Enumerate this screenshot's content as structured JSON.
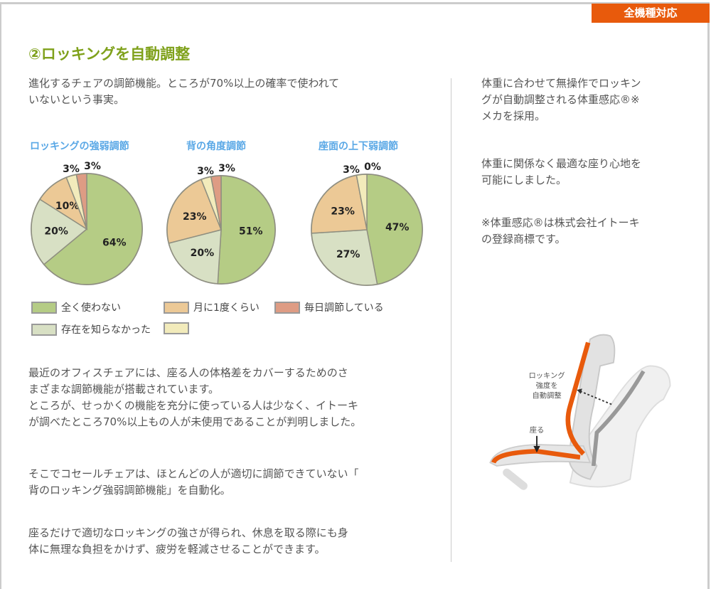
{
  "badge": "全機種対応",
  "title": "②ロッキングを自動調整",
  "intro": "進化するチェアの調節機能。ところが70%以上の確率で使われて\nいないという事実。",
  "body": [
    "最近のオフィスチェアには、座る人の体格差をカバーするためのさ\nまざまな調節機能が搭載されています。\nところが、せっかくの機能を充分に使っている人は少なく、イトーキ\nが調べたところ70%以上もの人が未使用であることが判明しました。",
    "そこでコセールチェアは、ほとんどの人が適切に調節できていない「\n背のロッキング強弱調節機能」を自動化。",
    "座るだけで適切なロッキングの強さが得られ、休息を取る際にも身\n体に無理な負担をかけず、疲労を軽減させることができます。"
  ],
  "side": [
    "体重に合わせて無操作でロッキン\nグが自動調整される体重感応®※\nメカを採用。",
    "体重に関係なく最適な座り心地を\n可能にしました。",
    "※体重感応®は株式会社イトーキ\nの登録商標です。"
  ],
  "illustration": {
    "label_rocking": [
      "ロッキング",
      "強度を",
      "自動調整"
    ],
    "label_sit": "座る",
    "accent": "#e85a0c"
  },
  "chart_data": [
    {
      "type": "pie",
      "title": "ロッキングの強弱調節",
      "categories": [
        "全く使わない",
        "存在を知らなかった",
        "月に1度くらい",
        "",
        "毎日調節している"
      ],
      "values": [
        64,
        20,
        10,
        3,
        3
      ]
    },
    {
      "type": "pie",
      "title": "背の角度調節",
      "categories": [
        "全く使わない",
        "存在を知らなかった",
        "月に1度くらい",
        "",
        "毎日調節している"
      ],
      "values": [
        51,
        20,
        23,
        3,
        3
      ]
    },
    {
      "type": "pie",
      "title": "座面の上下弱調節",
      "categories": [
        "全く使わない",
        "存在を知らなかった",
        "月に1度くらい",
        "",
        "毎日調節している"
      ],
      "values": [
        47,
        27,
        23,
        3,
        0
      ]
    }
  ],
  "legend": [
    {
      "label": "全く使わない",
      "color": "#b5cc85"
    },
    {
      "label": "存在を知らなかった",
      "color": "#d8e0c4"
    },
    {
      "label": "月に1度くらい",
      "color": "#ecc996"
    },
    {
      "label": "",
      "color": "#f2ebbb"
    },
    {
      "label": "毎日調節している",
      "color": "#de9c84"
    }
  ]
}
